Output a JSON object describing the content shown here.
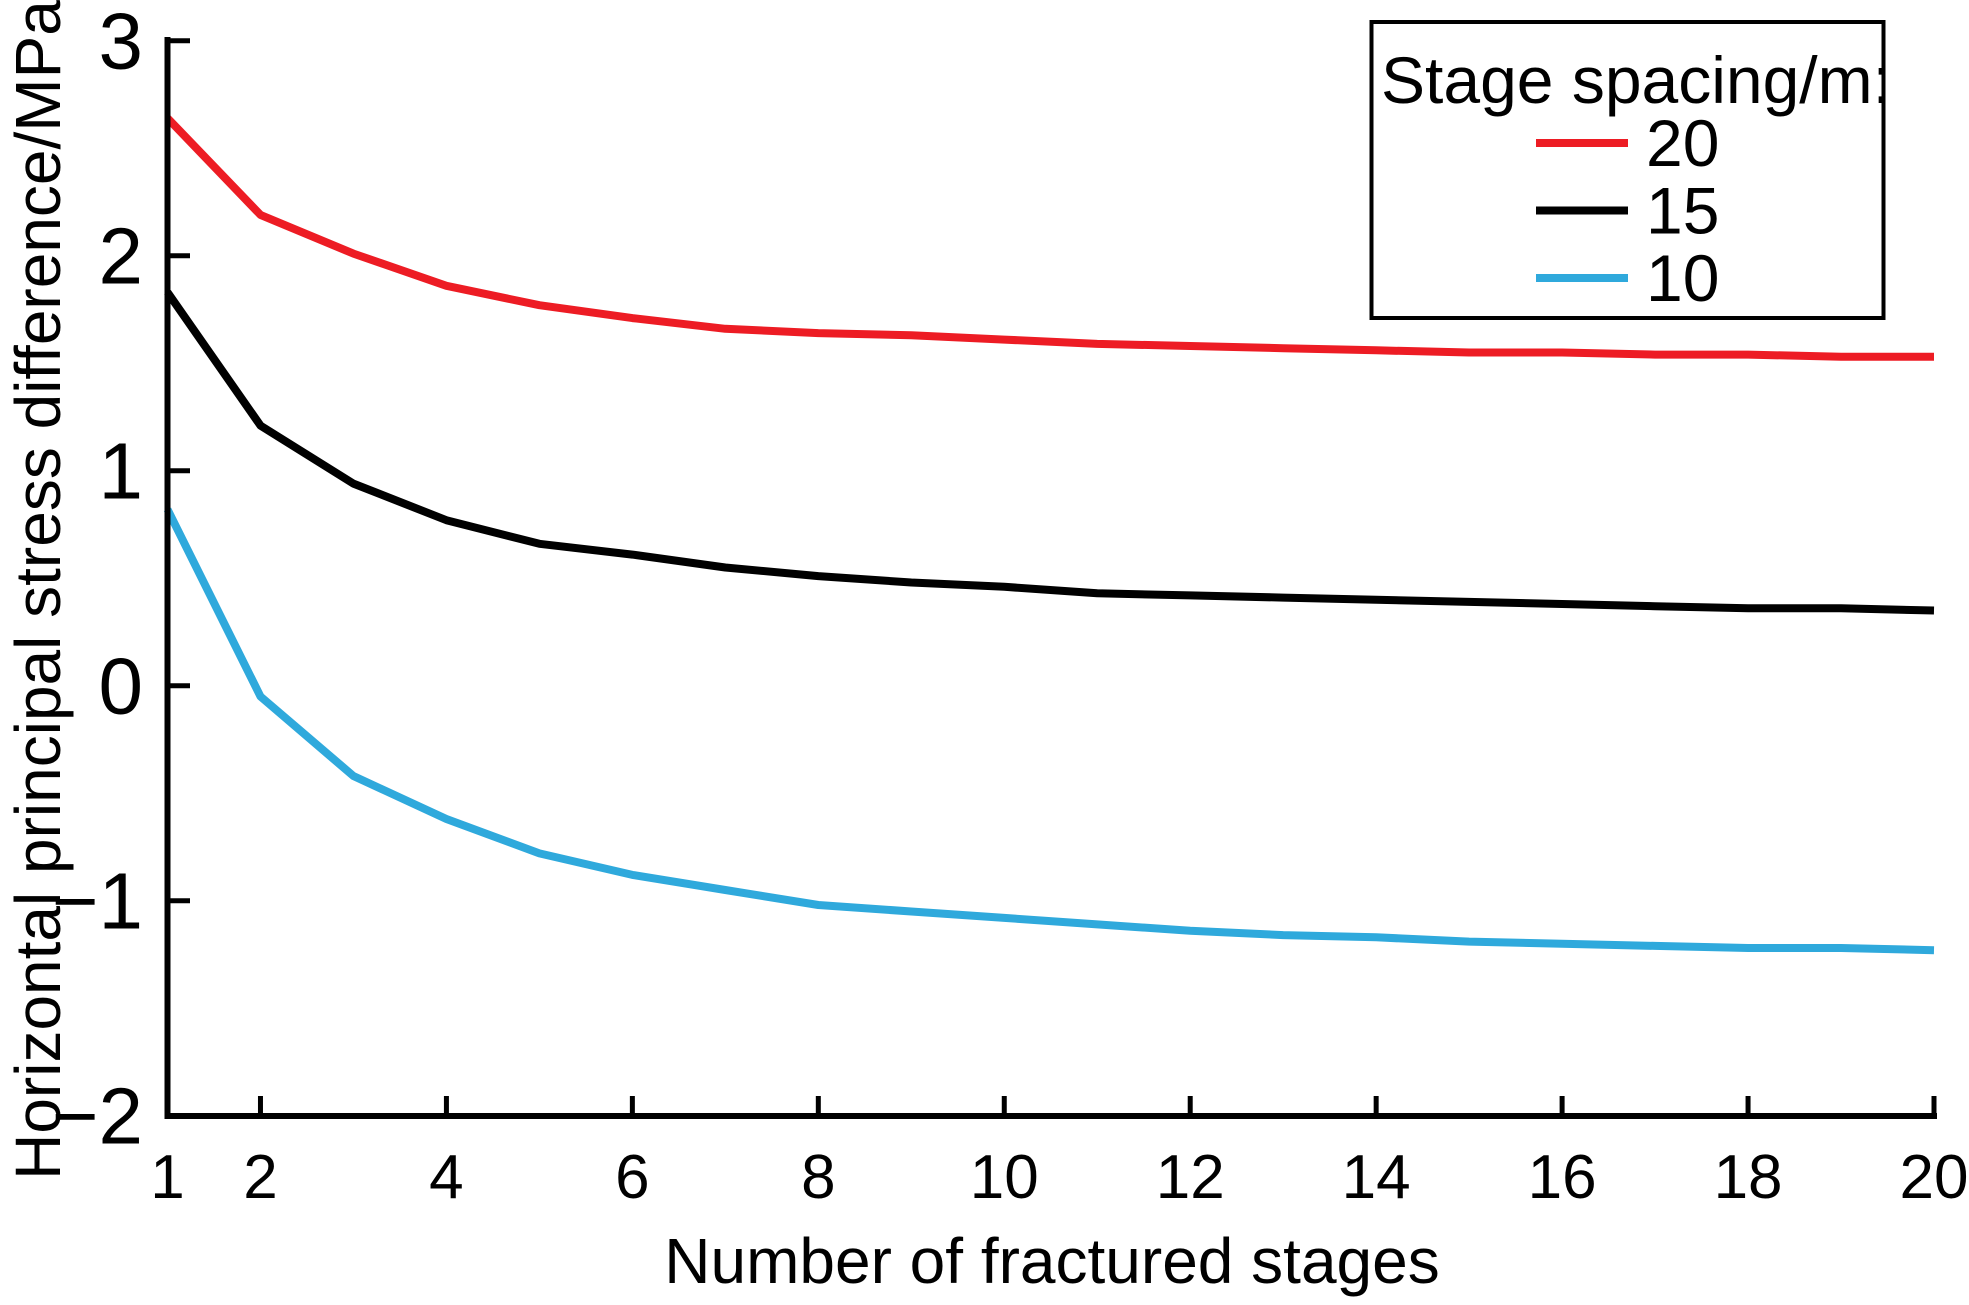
{
  "chart_data": {
    "type": "line",
    "title": "",
    "xlabel": "Number of fractured stages",
    "ylabel": "Horizontal principal stress difference/MPa",
    "x": [
      1,
      2,
      3,
      4,
      5,
      6,
      7,
      8,
      9,
      10,
      11,
      12,
      13,
      14,
      15,
      16,
      17,
      18,
      19,
      20
    ],
    "series": [
      {
        "name": "20",
        "color": "#ed1c24",
        "values": [
          2.64,
          2.19,
          2.01,
          1.86,
          1.77,
          1.71,
          1.66,
          1.64,
          1.63,
          1.61,
          1.59,
          1.58,
          1.57,
          1.56,
          1.55,
          1.55,
          1.54,
          1.54,
          1.53,
          1.53
        ]
      },
      {
        "name": "15",
        "color": "#000000",
        "values": [
          1.83,
          1.21,
          0.94,
          0.77,
          0.66,
          0.61,
          0.55,
          0.51,
          0.48,
          0.46,
          0.43,
          0.42,
          0.41,
          0.4,
          0.39,
          0.38,
          0.37,
          0.36,
          0.36,
          0.35
        ]
      },
      {
        "name": "10",
        "color": "#2fa9dc",
        "values": [
          0.82,
          -0.05,
          -0.42,
          -0.62,
          -0.78,
          -0.88,
          -0.95,
          -1.02,
          -1.05,
          -1.08,
          -1.11,
          -1.14,
          -1.16,
          -1.17,
          -1.19,
          -1.2,
          -1.21,
          -1.22,
          -1.22,
          -1.23
        ]
      }
    ],
    "xlim": [
      1,
      20
    ],
    "ylim": [
      -2,
      3
    ],
    "xticks": [
      1,
      2,
      4,
      6,
      8,
      10,
      12,
      14,
      16,
      18,
      20
    ],
    "yticks": [
      -2,
      -1,
      0,
      1,
      2,
      3
    ],
    "grid": false,
    "legend_title": "Stage spacing/m:",
    "legend_position": "top-right",
    "axis_color": "#000000",
    "background_color": "#ffffff"
  }
}
